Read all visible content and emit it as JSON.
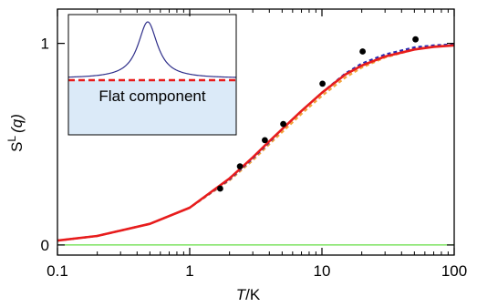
{
  "chart_data": {
    "type": "line",
    "xlabel_italic": "T",
    "xlabel_unit": "/K",
    "ylabel_main": "S",
    "ylabel_sup": "L",
    "ylabel_arg": "(q)",
    "x_scale": "log",
    "xlim": [
      0.1,
      100
    ],
    "ylim": [
      -0.05,
      1.17
    ],
    "x_ticks": [
      {
        "value": 0.1,
        "label": "0.1"
      },
      {
        "value": 1,
        "label": "1"
      },
      {
        "value": 10,
        "label": "10"
      },
      {
        "value": 100,
        "label": "100"
      }
    ],
    "y_ticks": [
      {
        "value": 0,
        "label": "0"
      },
      {
        "value": 1,
        "label": "1"
      }
    ],
    "grid": false,
    "series": [
      {
        "style": "solid",
        "color": "#66dd44",
        "x": [
          0.1,
          100
        ],
        "y": [
          0,
          0
        ]
      },
      {
        "style": "dashed",
        "color": "#f2a33a",
        "x": [
          0.1,
          0.2,
          0.5,
          1,
          2,
          3,
          4,
          5,
          7,
          10,
          15,
          20,
          30,
          50,
          70,
          100
        ],
        "y": [
          0.022,
          0.045,
          0.105,
          0.185,
          0.32,
          0.42,
          0.5,
          0.56,
          0.65,
          0.74,
          0.83,
          0.88,
          0.93,
          0.97,
          0.985,
          0.99
        ]
      },
      {
        "style": "dashed",
        "color": "#2a2ab0",
        "x": [
          0.1,
          0.2,
          0.5,
          1,
          2,
          3,
          4,
          5,
          7,
          10,
          15,
          20,
          30,
          50,
          70,
          100
        ],
        "y": [
          0.022,
          0.045,
          0.105,
          0.185,
          0.325,
          0.43,
          0.51,
          0.575,
          0.665,
          0.755,
          0.85,
          0.9,
          0.945,
          0.98,
          0.99,
          0.995
        ]
      },
      {
        "style": "solid",
        "color": "#e81c1c",
        "x": [
          0.1,
          0.2,
          0.5,
          1,
          2,
          3,
          4,
          5,
          7,
          10,
          15,
          20,
          30,
          50,
          70,
          100
        ],
        "y": [
          0.022,
          0.045,
          0.105,
          0.185,
          0.33,
          0.435,
          0.515,
          0.575,
          0.665,
          0.755,
          0.845,
          0.89,
          0.935,
          0.97,
          0.983,
          0.99
        ]
      }
    ],
    "points": {
      "color": "#000000",
      "x": [
        1.7,
        2.4,
        3.7,
        5.1,
        10.1,
        20.3,
        51
      ],
      "y": [
        0.28,
        0.39,
        0.52,
        0.6,
        0.8,
        0.96,
        1.02
      ]
    },
    "inset": {
      "label": "Flat component",
      "fill_color": "#dbeaf8",
      "peak_color": "#2f2f8a",
      "flat_line_color": "#e81c1c"
    }
  }
}
